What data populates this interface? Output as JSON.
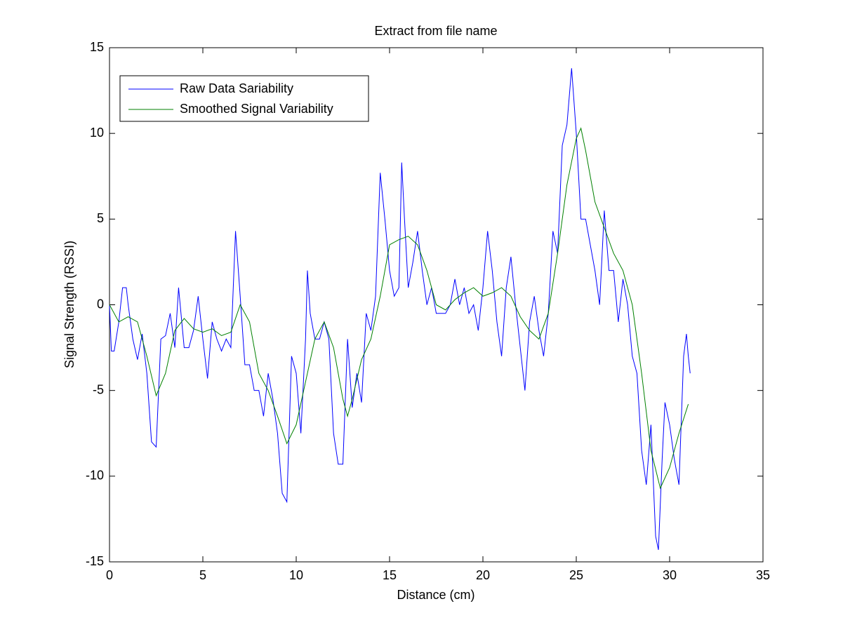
{
  "chart_data": {
    "type": "line",
    "title": "Extract from file name",
    "x_label": "Distance (cm)",
    "y_label": "Signal Strength (RSSI)",
    "xlim": [
      0,
      35
    ],
    "ylim": [
      -15,
      15
    ],
    "xticks": [
      0,
      5,
      10,
      15,
      20,
      25,
      30,
      35
    ],
    "yticks": [
      -15,
      -10,
      -5,
      0,
      5,
      10,
      15
    ],
    "legend_position": "upper-left",
    "series": [
      {
        "name": "Raw Data Sariability",
        "color": "#0000ff",
        "x": [
          0,
          0.1,
          0.25,
          0.5,
          0.7,
          0.9,
          1.0,
          1.25,
          1.5,
          1.75,
          2.0,
          2.25,
          2.5,
          2.75,
          3.0,
          3.25,
          3.5,
          3.7,
          4.0,
          4.25,
          4.5,
          4.75,
          5.0,
          5.25,
          5.5,
          5.75,
          6.0,
          6.25,
          6.5,
          6.75,
          7.0,
          7.25,
          7.5,
          7.75,
          8.0,
          8.25,
          8.5,
          8.75,
          9.0,
          9.25,
          9.5,
          9.75,
          10.0,
          10.25,
          10.5,
          10.6,
          10.75,
          11.0,
          11.25,
          11.5,
          11.75,
          12.0,
          12.25,
          12.5,
          12.75,
          13.0,
          13.25,
          13.5,
          13.75,
          14.0,
          14.25,
          14.5,
          14.75,
          15.0,
          15.25,
          15.5,
          15.65,
          15.8,
          16.0,
          16.25,
          16.5,
          16.75,
          17.0,
          17.25,
          17.5,
          17.75,
          18.0,
          18.25,
          18.5,
          18.75,
          19.0,
          19.25,
          19.5,
          19.75,
          20.0,
          20.25,
          20.5,
          20.75,
          21.0,
          21.25,
          21.5,
          21.75,
          22.0,
          22.25,
          22.5,
          22.75,
          23.0,
          23.25,
          23.5,
          23.75,
          24.0,
          24.25,
          24.5,
          24.75,
          25.0,
          25.25,
          25.5,
          25.75,
          26.0,
          26.25,
          26.5,
          26.75,
          27.0,
          27.25,
          27.5,
          27.75,
          28.0,
          28.25,
          28.5,
          28.75,
          29.0,
          29.25,
          29.4,
          29.6,
          29.75,
          30.0,
          30.25,
          30.5,
          30.75,
          30.9,
          31.0,
          31.1
        ],
        "values": [
          0,
          -2.7,
          -2.7,
          -1,
          1,
          1,
          0,
          -2,
          -3.2,
          -1.7,
          -4,
          -8,
          -8.3,
          -2,
          -1.8,
          -0.5,
          -2.5,
          1,
          -2.5,
          -2.5,
          -1.5,
          0.5,
          -2,
          -4.3,
          -1,
          -2,
          -2.7,
          -2,
          -2.5,
          4.3,
          0.5,
          -3.5,
          -3.5,
          -5,
          -5,
          -6.5,
          -4,
          -5.5,
          -7.5,
          -11,
          -11.5,
          -3,
          -4,
          -7.5,
          -2,
          2,
          -0.5,
          -2,
          -2,
          -1,
          -2,
          -7.5,
          -9.3,
          -9.3,
          -2,
          -6,
          -4,
          -5.7,
          -0.5,
          -1.5,
          0.5,
          7.7,
          5,
          2,
          0.5,
          1,
          8.3,
          5,
          1,
          2.5,
          4.3,
          2,
          0,
          1,
          -0.5,
          -0.5,
          -0.5,
          0,
          1.5,
          0,
          1,
          -0.5,
          0,
          -1.5,
          1,
          4.3,
          2,
          -1,
          -3,
          1,
          2.8,
          0,
          -2.5,
          -5,
          -1,
          0.5,
          -1.5,
          -3,
          -0.5,
          4.3,
          3,
          9.3,
          10.5,
          13.8,
          10,
          5,
          5,
          3.5,
          2,
          0,
          5.5,
          2,
          2,
          -1,
          1.5,
          0,
          -3,
          -4,
          -8.5,
          -10.5,
          -7,
          -13.5,
          -14.3,
          -9,
          -5.7,
          -7,
          -9,
          -10.5,
          -3,
          -1.7,
          -3,
          -4
        ]
      },
      {
        "name": "Smoothed Signal Variability",
        "color": "#008000",
        "x": [
          0,
          0.5,
          1.0,
          1.5,
          2.0,
          2.5,
          3.0,
          3.5,
          4.0,
          4.5,
          5.0,
          5.5,
          6.0,
          6.5,
          7.0,
          7.5,
          8.0,
          8.5,
          9.0,
          9.5,
          10.0,
          10.5,
          11.0,
          11.5,
          12.0,
          12.5,
          12.75,
          13.0,
          13.5,
          14.0,
          14.5,
          15.0,
          15.5,
          16.0,
          16.5,
          17.0,
          17.5,
          18.0,
          18.5,
          19.0,
          19.5,
          20.0,
          20.5,
          21.0,
          21.5,
          22.0,
          22.5,
          23.0,
          23.5,
          24.0,
          24.5,
          25.0,
          25.25,
          25.5,
          26.0,
          26.5,
          27.0,
          27.5,
          28.0,
          28.5,
          29.0,
          29.5,
          30.0,
          30.5,
          31.0
        ],
        "values": [
          0,
          -1,
          -0.7,
          -1,
          -3,
          -5.3,
          -4,
          -1.5,
          -0.8,
          -1.4,
          -1.6,
          -1.4,
          -1.8,
          -1.6,
          0,
          -1,
          -4,
          -5,
          -6.5,
          -8.1,
          -7,
          -4.5,
          -2,
          -1,
          -2.5,
          -5.5,
          -6.5,
          -5.5,
          -3.2,
          -2,
          0.5,
          3.5,
          3.8,
          4,
          3.5,
          2,
          0,
          -0.3,
          0.3,
          0.7,
          1,
          0.5,
          0.7,
          1,
          0.5,
          -0.7,
          -1.5,
          -2,
          -0.5,
          3,
          7,
          9.7,
          10.3,
          9,
          6,
          4.5,
          3,
          2,
          0,
          -4,
          -8.5,
          -10.7,
          -9.5,
          -7.5,
          -5.8
        ]
      }
    ]
  }
}
